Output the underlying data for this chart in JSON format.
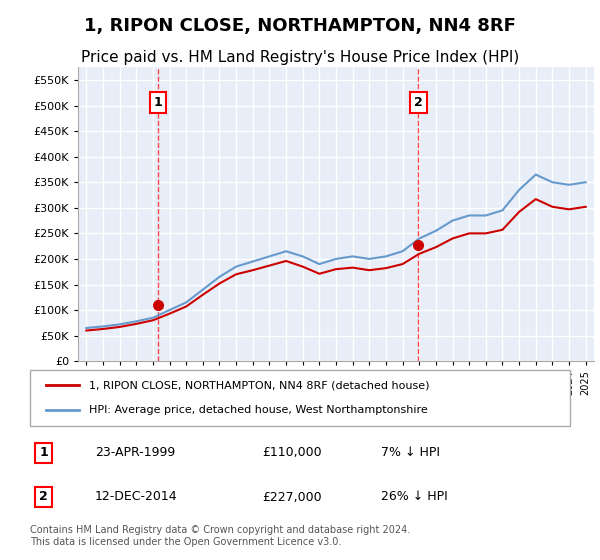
{
  "title": "1, RIPON CLOSE, NORTHAMPTON, NN4 8RF",
  "subtitle": "Price paid vs. HM Land Registry's House Price Index (HPI)",
  "title_fontsize": 13,
  "subtitle_fontsize": 11,
  "background_color": "#e8eef8",
  "plot_bg_color": "#e8eef8",
  "grid_color": "#ffffff",
  "legend_label_red": "1, RIPON CLOSE, NORTHAMPTON, NN4 8RF (detached house)",
  "legend_label_blue": "HPI: Average price, detached house, West Northamptonshire",
  "footnote": "Contains HM Land Registry data © Crown copyright and database right 2024.\nThis data is licensed under the Open Government Licence v3.0.",
  "transactions": [
    {
      "date": "1999-04-23",
      "price": 110000,
      "label": "1"
    },
    {
      "date": "2014-12-12",
      "price": 227000,
      "label": "2"
    }
  ],
  "transaction_labels": [
    {
      "label": "1",
      "date": "23-APR-1999",
      "price": "£110,000",
      "pct": "7% ↓ HPI"
    },
    {
      "label": "2",
      "date": "12-DEC-2014",
      "price": "£227,000",
      "pct": "26% ↓ HPI"
    }
  ],
  "ylim": [
    0,
    575000
  ],
  "yticks": [
    0,
    50000,
    100000,
    150000,
    200000,
    250000,
    300000,
    350000,
    400000,
    450000,
    500000,
    550000
  ],
  "ytick_labels": [
    "£0",
    "£50K",
    "£100K",
    "£150K",
    "£200K",
    "£250K",
    "£300K",
    "£350K",
    "£400K",
    "£450K",
    "£500K",
    "£550K"
  ],
  "red_color": "#cc0000",
  "blue_color": "#6699cc",
  "marker_color_red": "#cc0000",
  "hpi_data": {
    "years": [
      1995,
      1996,
      1997,
      1998,
      1999,
      2000,
      2001,
      2002,
      2003,
      2004,
      2005,
      2006,
      2007,
      2008,
      2009,
      2010,
      2011,
      2012,
      2013,
      2014,
      2015,
      2016,
      2017,
      2018,
      2019,
      2020,
      2021,
      2022,
      2023,
      2024,
      2025
    ],
    "values": [
      65000,
      68000,
      72000,
      78000,
      85000,
      100000,
      115000,
      140000,
      165000,
      185000,
      195000,
      205000,
      215000,
      205000,
      190000,
      200000,
      205000,
      200000,
      205000,
      215000,
      240000,
      255000,
      275000,
      285000,
      285000,
      295000,
      335000,
      365000,
      350000,
      345000,
      350000
    ]
  },
  "red_line_data": {
    "years": [
      1995,
      1996,
      1997,
      1998,
      1999,
      2000,
      2001,
      2002,
      2003,
      2004,
      2005,
      2006,
      2007,
      2008,
      2009,
      2010,
      2011,
      2012,
      2013,
      2014,
      2015,
      2016,
      2017,
      2018,
      2019,
      2020,
      2021,
      2022,
      2023,
      2024,
      2025
    ],
    "values": [
      60000,
      63000,
      67000,
      73000,
      80000,
      93000,
      107000,
      130000,
      152000,
      170000,
      178000,
      187000,
      196000,
      185000,
      171000,
      180000,
      183000,
      178000,
      182000,
      190000,
      210000,
      223000,
      240000,
      250000,
      250000,
      257000,
      292000,
      317000,
      302000,
      297000,
      302000
    ]
  },
  "xlim_start": 1994.5,
  "xlim_end": 2025.5
}
